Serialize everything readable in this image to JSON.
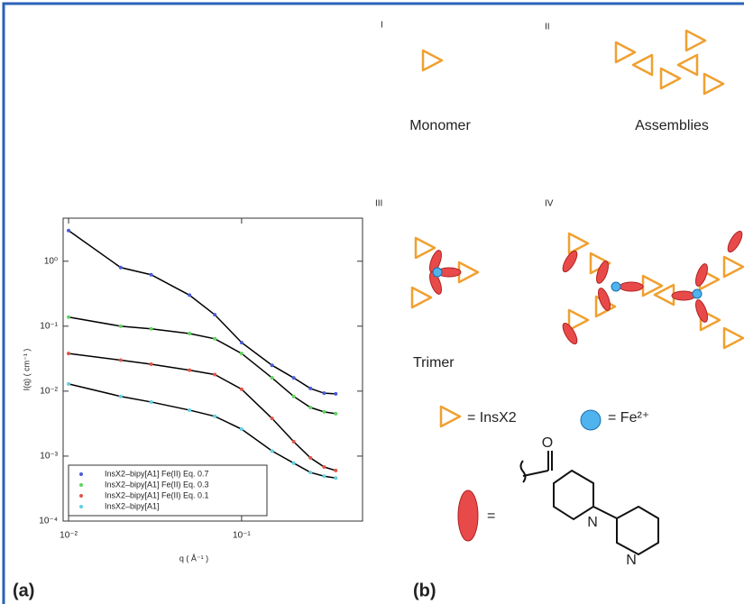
{
  "chart_data": {
    "type": "scatter",
    "panel_label": "(a)",
    "x_label": "q ( Å⁻¹ )",
    "y_label": "I(q) ( cm⁻¹ )",
    "log_x": true,
    "log_y": true,
    "xlim": [
      0.0093,
      0.5
    ],
    "ylim": [
      0.0001,
      4.6
    ],
    "xticks": [
      {
        "value": 0.01,
        "label": "10⁻²"
      },
      {
        "value": 0.1,
        "label": "10⁻¹"
      }
    ],
    "yticks": [
      {
        "value": 0.0001,
        "label": "10⁻⁴"
      },
      {
        "value": 0.001,
        "label": "10⁻³"
      },
      {
        "value": 0.01,
        "label": "10⁻²"
      },
      {
        "value": 0.1,
        "label": "10⁻¹"
      },
      {
        "value": 1,
        "label": "10⁰"
      }
    ],
    "legend": "lower left",
    "fit_color": "#000000",
    "x": [
      0.01,
      0.02,
      0.03,
      0.05,
      0.07,
      0.1,
      0.15,
      0.2,
      0.25,
      0.3,
      0.35
    ],
    "series": [
      {
        "name": "InsX2–bipy[A1] Fe(II) Eq. 0.7",
        "color": "#4a5bd6",
        "values": [
          2.96,
          0.8,
          0.62,
          0.3,
          0.15,
          0.056,
          0.025,
          0.016,
          0.011,
          0.0093,
          0.0091
        ]
      },
      {
        "name": "InsX2–bipy[A1] Fe(II) Eq. 0.3",
        "color": "#5fd45f",
        "values": [
          0.138,
          0.1,
          0.091,
          0.077,
          0.064,
          0.038,
          0.016,
          0.0083,
          0.0056,
          0.0048,
          0.0045
        ]
      },
      {
        "name": "InsX2–bipy[A1] Fe(II) Eq. 0.1",
        "color": "#e0554a",
        "values": [
          0.038,
          0.03,
          0.026,
          0.021,
          0.018,
          0.0107,
          0.0038,
          0.00167,
          0.00094,
          0.00068,
          0.0006
        ]
      },
      {
        "name": "InsX2–bipy[A1]",
        "color": "#5fd0e0",
        "values": [
          0.0129,
          0.0083,
          0.0068,
          0.0051,
          0.0041,
          0.0026,
          0.0012,
          0.00078,
          0.00056,
          0.00049,
          0.00046
        ]
      }
    ]
  },
  "diagram": {
    "panel_label": "(b)",
    "label_1": "I",
    "label_2": "II",
    "label_3": "III",
    "label_4": "IV",
    "monomer": "Monomer",
    "assemblies": "Assemblies",
    "trimer": "Trimer",
    "insx2": "= InsX2",
    "fe": "= Fe²⁺",
    "ligand_eq": "=",
    "atom_o": "O",
    "atom_n1": "N",
    "atom_n2": "N"
  }
}
